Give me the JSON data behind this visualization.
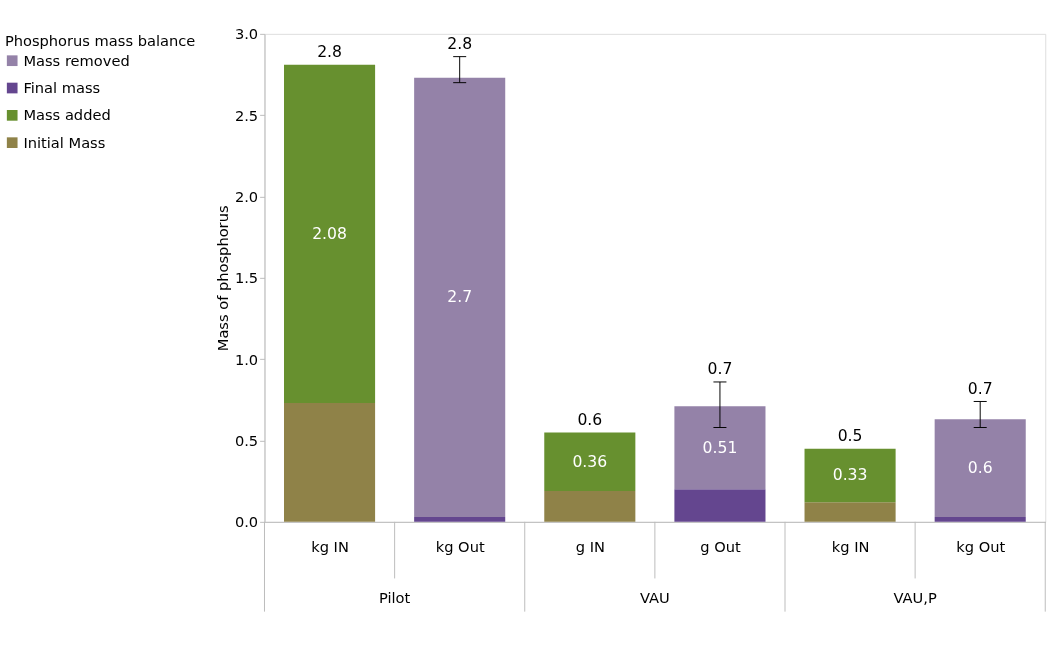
{
  "chart_data": {
    "type": "bar",
    "stacked": true,
    "legend_title": "Phosphorus mass balance",
    "ylabel": "Mass of phosphorus",
    "categories": [
      "kg  IN",
      "kg  Out",
      "g  IN",
      "g  Out",
      "kg  IN",
      "kg  Out"
    ],
    "series": [
      {
        "name": "Initial Mass",
        "color": "#8f8248",
        "values": [
          0.73,
          null,
          0.19,
          null,
          0.12,
          null
        ]
      },
      {
        "name": "Mass added",
        "color": "#67902f",
        "values": [
          2.08,
          null,
          0.36,
          null,
          0.33,
          null
        ],
        "value_labels": [
          "2.08",
          null,
          "0.36",
          null,
          "0.33",
          null
        ]
      },
      {
        "name": "Final mass",
        "color": "#64468f",
        "values": [
          null,
          0.03,
          null,
          0.2,
          null,
          0.03
        ]
      },
      {
        "name": "Mass removed",
        "color": "#9482a8",
        "values": [
          null,
          2.7,
          null,
          0.51,
          null,
          0.6
        ],
        "value_labels": [
          null,
          "2.7",
          null,
          "0.51",
          null,
          "0.6"
        ],
        "errors": [
          null,
          [
            2.7,
            2.86
          ],
          null,
          [
            0.58,
            0.86
          ],
          null,
          [
            0.58,
            0.74
          ]
        ]
      }
    ],
    "totals": [
      "2.8",
      "2.8",
      "0.6",
      "0.7",
      "0.5",
      "0.7"
    ],
    "annotations": [
      "Pilot",
      "VAU",
      "VAU,P"
    ],
    "ylim": [
      0,
      3
    ],
    "yticks": [
      {
        "value": 0,
        "label": "0.0"
      },
      {
        "value": 0.5,
        "label": "0.5"
      },
      {
        "value": 1,
        "label": "1.0"
      },
      {
        "value": 1.5,
        "label": "1.5"
      },
      {
        "value": 2,
        "label": "2.0"
      },
      {
        "value": 2.5,
        "label": "2.5"
      },
      {
        "value": 3,
        "label": "3.0"
      }
    ],
    "grid": false,
    "legend": "left"
  }
}
